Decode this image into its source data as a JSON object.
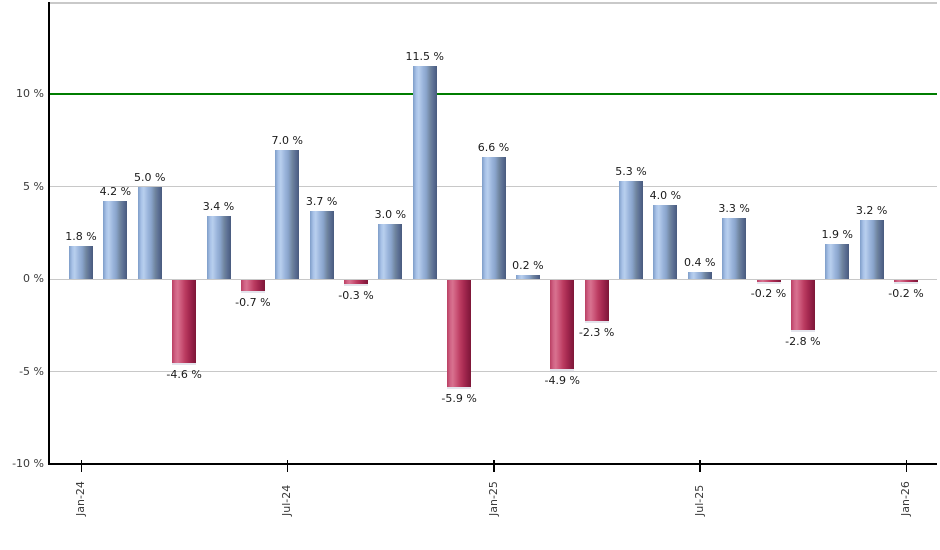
{
  "chart_data": {
    "type": "bar",
    "title": "",
    "values": [
      1.8,
      4.2,
      5.0,
      -4.6,
      3.4,
      -0.7,
      7.0,
      3.7,
      -0.3,
      3.0,
      11.5,
      -5.9,
      6.6,
      0.2,
      -4.9,
      -2.3,
      5.3,
      4.0,
      0.4,
      3.3,
      -0.2,
      -2.8,
      1.9,
      3.2,
      -0.2
    ],
    "value_labels": [
      "1.8 %",
      "4.2 %",
      "5.0 %",
      "-4.6 %",
      "3.4 %",
      "-0.7 %",
      "7.0 %",
      "3.7 %",
      "-0.3 %",
      "3.0 %",
      "11.5 %",
      "-5.9 %",
      "6.6 %",
      "0.2 %",
      "-4.9 %",
      "-2.3 %",
      "5.3 %",
      "4.0 %",
      "0.4 %",
      "3.3 %",
      "-0.2 %",
      "-2.8 %",
      "1.9 %",
      "3.2 %",
      "-0.2 %"
    ],
    "value_label_suffix": " %",
    "x_tick_labels": [
      {
        "index": 0,
        "label": "Jan-24"
      },
      {
        "index": 6,
        "label": "Jul-24"
      },
      {
        "index": 12,
        "label": "Jan-25"
      },
      {
        "index": 18,
        "label": "Jul-25"
      },
      {
        "index": 24,
        "label": "Jan-26"
      }
    ],
    "y_ticks": [
      {
        "value": 10,
        "label": "10 %"
      },
      {
        "value": 5,
        "label": "5 %"
      },
      {
        "value": 0,
        "label": "0 %"
      },
      {
        "value": -5,
        "label": "-5 %"
      },
      {
        "value": -10,
        "label": "-10 %"
      }
    ],
    "ylim": [
      -10,
      15
    ],
    "grid": true,
    "legend": false,
    "reference_line": {
      "value": 10,
      "color": "#007d00"
    },
    "colors": {
      "positive_bar": "#8aa6d1",
      "negative_bar": "#c23b60",
      "gridline": "#c8c8c8",
      "plot_border": "#c9c9c9",
      "axis": "#000000",
      "axis_text": "#3a3a3a",
      "value_text": "#1a1a1a",
      "background": "#ffffff"
    }
  }
}
